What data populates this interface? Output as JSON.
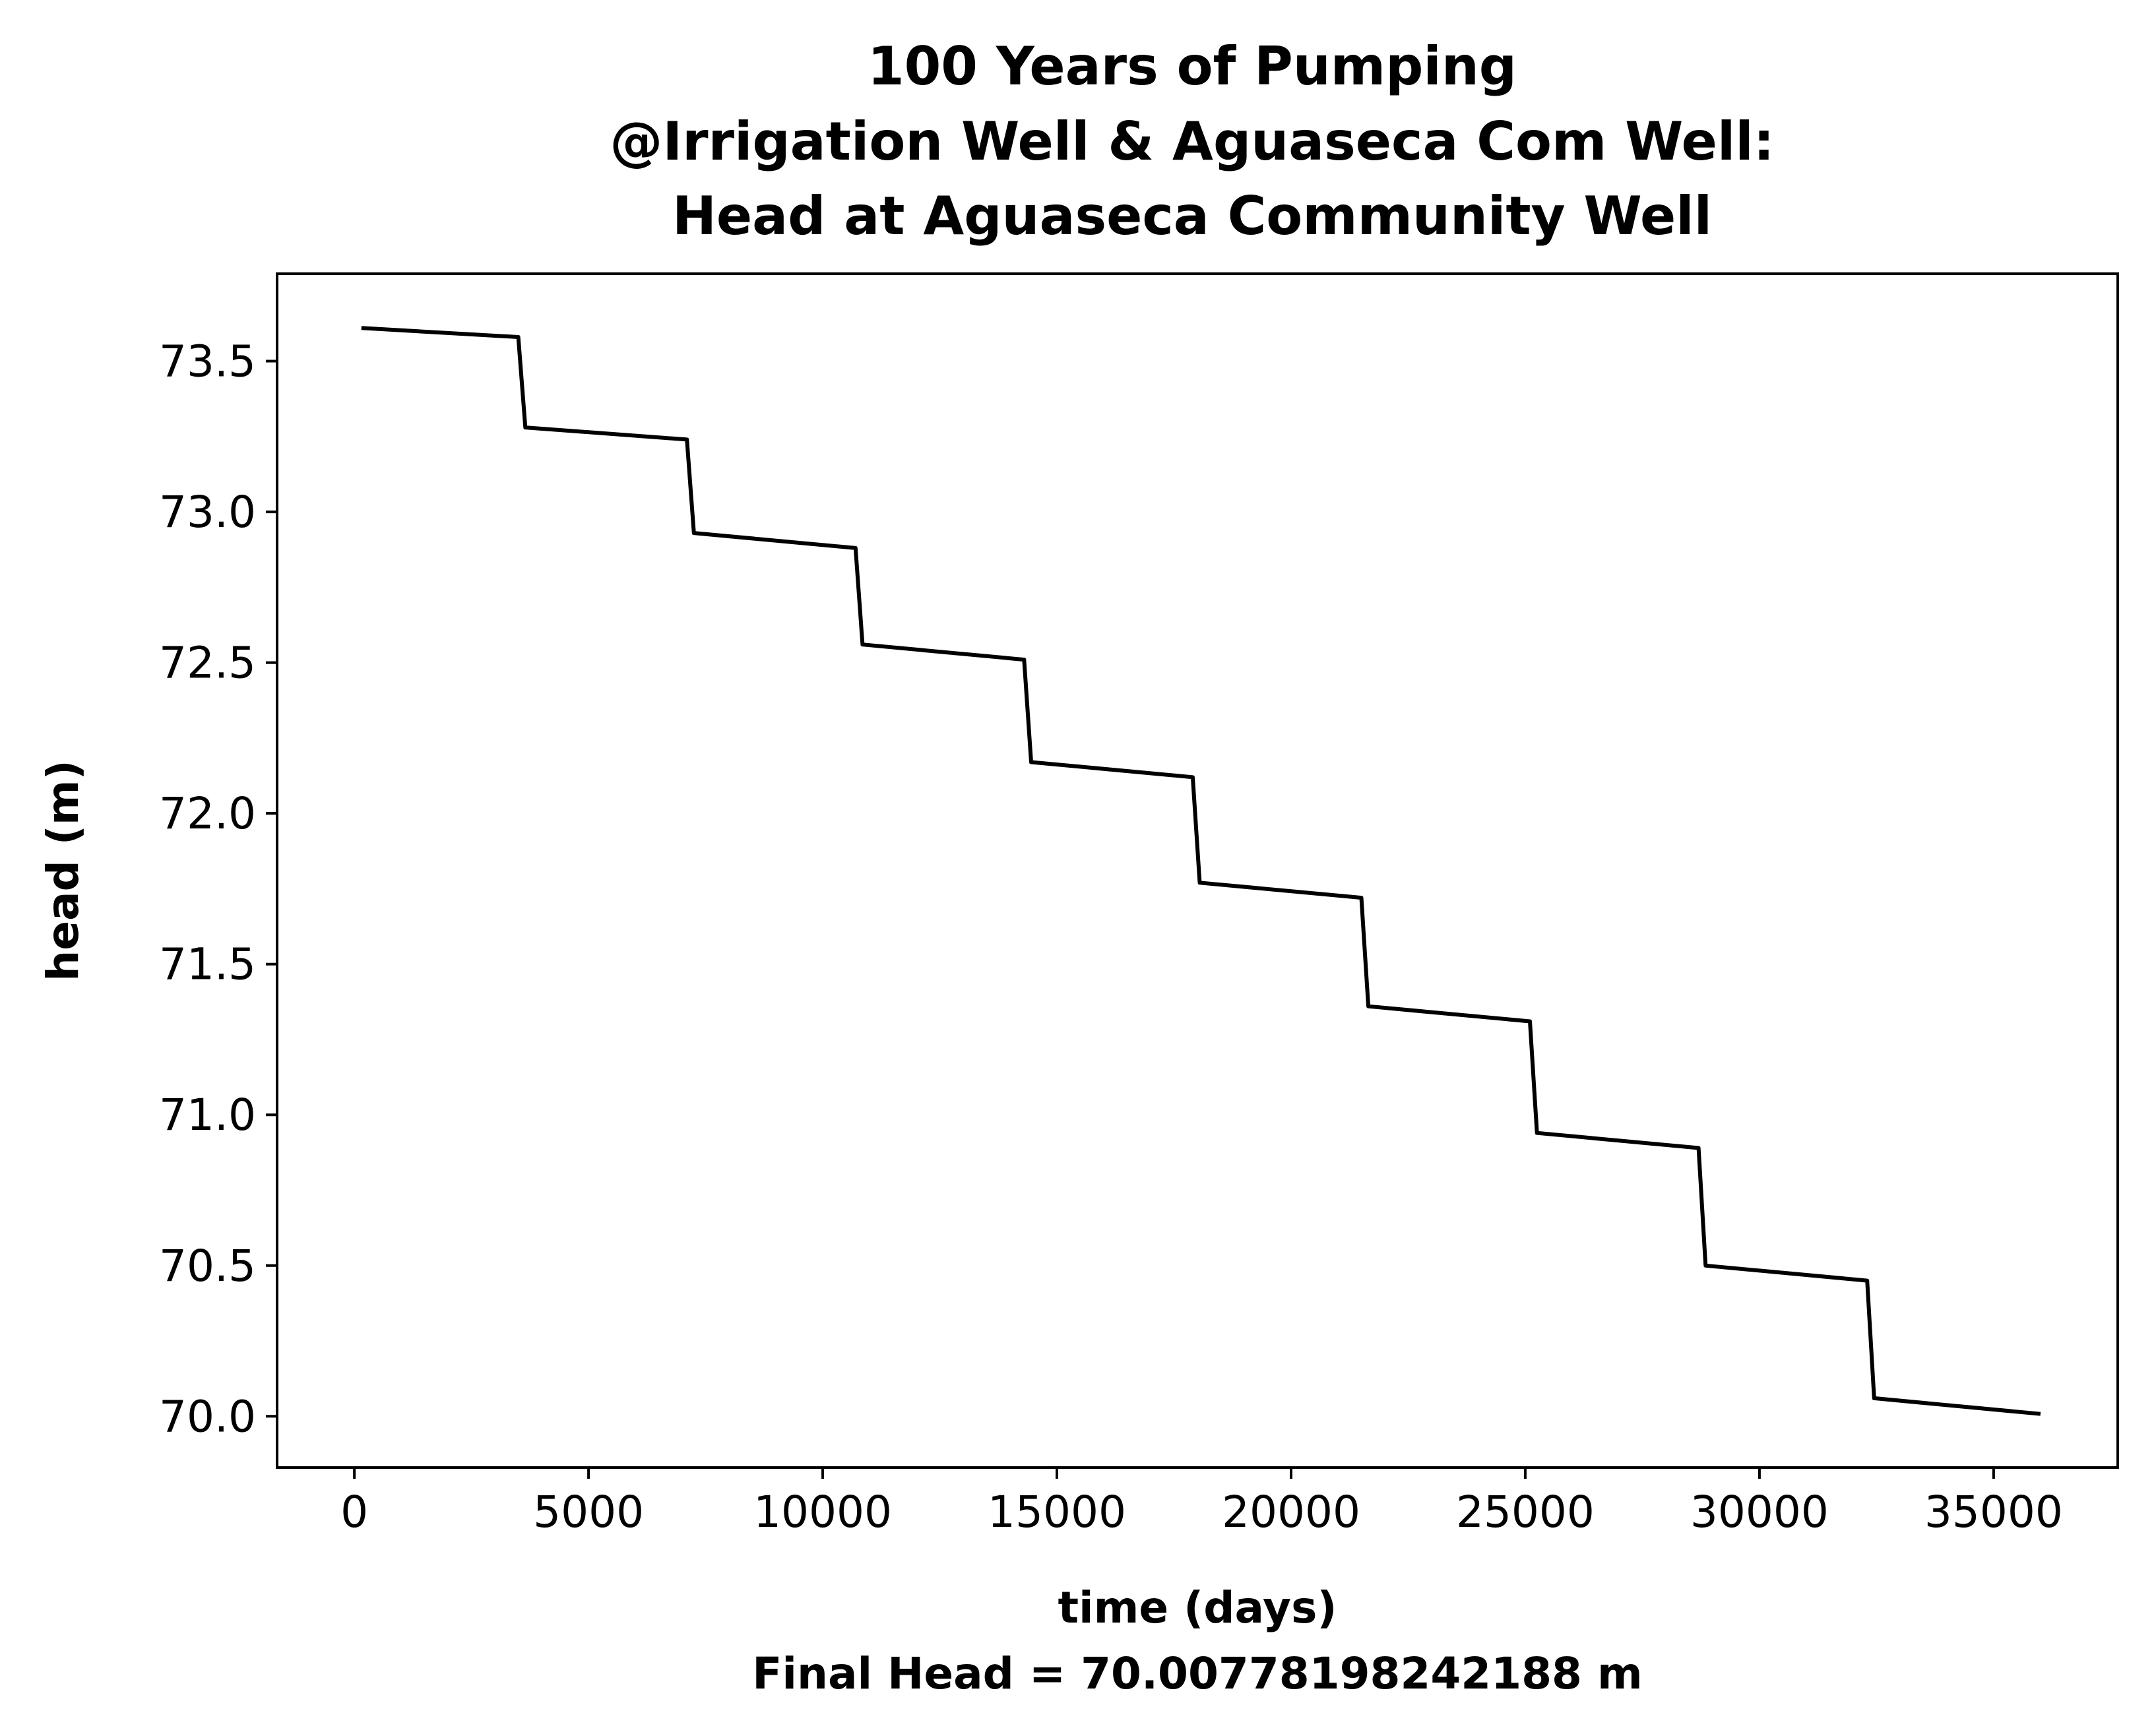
{
  "chart_data": {
    "type": "line",
    "title_lines": [
      "100 Years of Pumping",
      "@Irrigation Well & Aguaseca Com Well:",
      "Head at Aguaseca Community Well"
    ],
    "xlabel": "time (days)",
    "xlabel_note": "Final Head = 70.00778198242188 m",
    "ylabel": "head (m)",
    "xlim": [
      -1650,
      37650
    ],
    "ylim": [
      69.83,
      73.79
    ],
    "xticks": [
      0,
      5000,
      10000,
      15000,
      20000,
      25000,
      30000,
      35000
    ],
    "xtick_labels": [
      "0",
      "5000",
      "10000",
      "15000",
      "20000",
      "25000",
      "30000",
      "35000"
    ],
    "yticks": [
      70.0,
      70.5,
      71.0,
      71.5,
      72.0,
      72.5,
      73.0,
      73.5
    ],
    "ytick_labels": [
      "70.0",
      "70.5",
      "71.0",
      "71.5",
      "72.0",
      "72.5",
      "73.0",
      "73.5"
    ],
    "grid": false,
    "color": "#000000",
    "series": [
      {
        "x": [
          150,
          3500,
          3650,
          7100,
          7250,
          10700,
          10850,
          14300,
          14450,
          17900,
          18050,
          21500,
          21650,
          25100,
          25250,
          28700,
          28850,
          32300,
          32450,
          36000
        ],
        "values": [
          73.61,
          73.58,
          73.28,
          73.24,
          72.93,
          72.88,
          72.56,
          72.51,
          72.17,
          72.12,
          71.77,
          71.72,
          71.36,
          71.31,
          70.94,
          70.89,
          70.5,
          70.45,
          70.06,
          70.0078
        ]
      }
    ]
  }
}
